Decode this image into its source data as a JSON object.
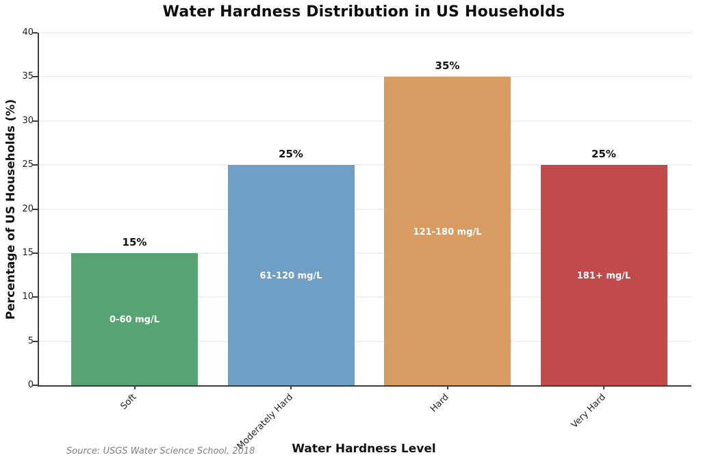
{
  "figure": {
    "background": "#ffffff"
  },
  "chart_data": {
    "type": "bar",
    "title": "Water Hardness Distribution in US Households",
    "xlabel": "Water Hardness Level",
    "ylabel": "Percentage of US Households (%)",
    "categories": [
      "Soft",
      "Moderately Hard",
      "Hard",
      "Very Hard"
    ],
    "values": [
      15,
      25,
      35,
      25
    ],
    "value_labels": [
      "15%",
      "25%",
      "35%",
      "25%"
    ],
    "bar_range_labels": [
      "0-60 mg/L",
      "61-120 mg/L",
      "121-180 mg/L",
      "181+ mg/L"
    ],
    "bar_colors": [
      "#58a374",
      "#6f9ec7",
      "#d89b61",
      "#c14b4b"
    ],
    "ylim": [
      0,
      40
    ],
    "yticks": [
      0,
      5,
      10,
      15,
      20,
      25,
      30,
      35,
      40
    ],
    "grid": "horizontal",
    "legend_position": "none",
    "x_tick_label_rotation_deg": 45,
    "source_note": "Source: USGS Water Science School, 2018"
  }
}
